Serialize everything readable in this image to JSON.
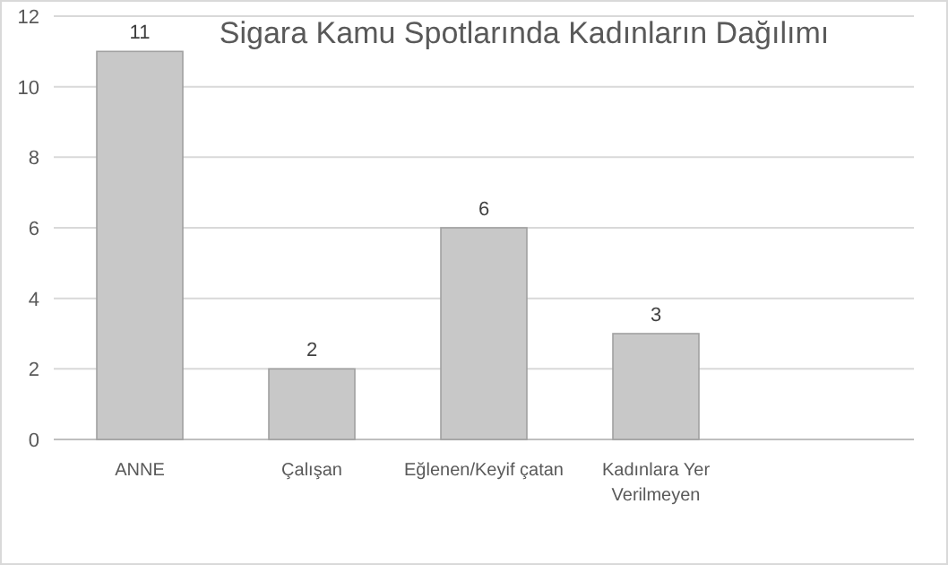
{
  "chart_data": {
    "type": "bar",
    "title": "Sigara Kamu Spotlarında Kadınların Dağılımı",
    "categories": [
      "ANNE",
      "Çalışan",
      "Eğlenen/Keyif çatan",
      "Kadınlara Yer Verilmeyen",
      null
    ],
    "values": [
      11,
      2,
      6,
      3,
      null
    ],
    "color": "#c8c8c8",
    "ylim": [
      0,
      12
    ],
    "yticks": [
      0,
      2,
      4,
      6,
      8,
      10,
      12
    ],
    "grid": "y",
    "data_labels": true
  }
}
